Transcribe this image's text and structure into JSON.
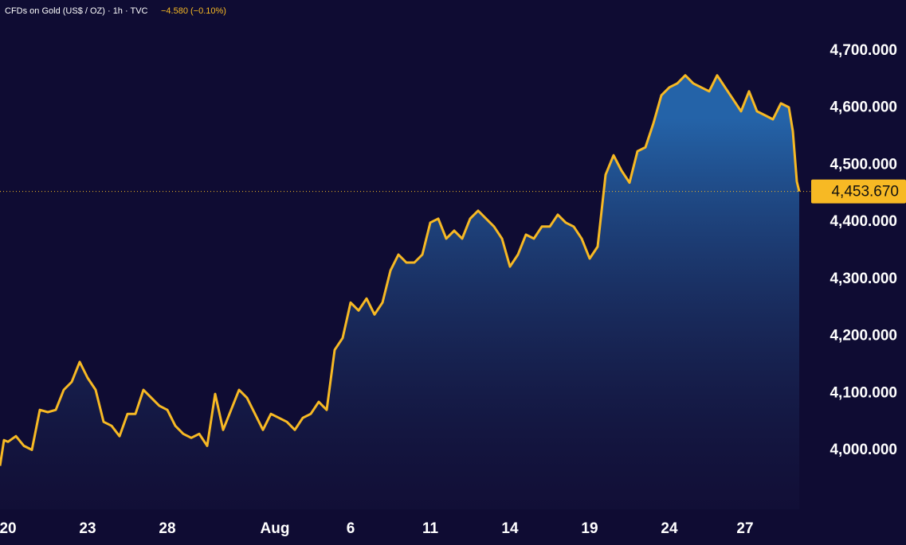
{
  "chart_data": {
    "type": "area",
    "title": "CFDs on Gold (US$ / OZ) · 1h · TVC",
    "change_label": "−4.580 (−0.10%)",
    "color": "#f7b924",
    "x": [
      0,
      1,
      2,
      4,
      6,
      8,
      10,
      12,
      14,
      16,
      18,
      20,
      22,
      24,
      26,
      28,
      30,
      32,
      34,
      36,
      38,
      40,
      42,
      44,
      46,
      48,
      50,
      52,
      54,
      56,
      58,
      60,
      62,
      64,
      66,
      68,
      70,
      72,
      74,
      76,
      78,
      80,
      82,
      84,
      86,
      88,
      90,
      92,
      94,
      96,
      98,
      100,
      102,
      104,
      106,
      108,
      110,
      112,
      114,
      116,
      118,
      120,
      122,
      124,
      126,
      128,
      130,
      132,
      134,
      136,
      138,
      140,
      142,
      144,
      146,
      148,
      150,
      152,
      154,
      156,
      158,
      160,
      162,
      164,
      166,
      168,
      170,
      172,
      174,
      176,
      178,
      180,
      182,
      184,
      186,
      188,
      190,
      192,
      194,
      196,
      198,
      199,
      200,
      200.6
    ],
    "values": [
      3973,
      4018,
      4015,
      4025,
      4008,
      4001,
      4071,
      4067,
      4071,
      4106,
      4120,
      4155,
      4127,
      4106,
      4050,
      4043,
      4025,
      4064,
      4064,
      4106,
      4092,
      4078,
      4071,
      4043,
      4029,
      4022,
      4029,
      4008,
      4099,
      4036,
      4071,
      4106,
      4092,
      4064,
      4036,
      4064,
      4057,
      4050,
      4036,
      4057,
      4064,
      4085,
      4071,
      4176,
      4197,
      4259,
      4245,
      4266,
      4238,
      4259,
      4315,
      4343,
      4329,
      4329,
      4343,
      4399,
      4406,
      4371,
      4385,
      4371,
      4406,
      4420,
      4406,
      4392,
      4371,
      4322,
      4343,
      4378,
      4371,
      4392,
      4392,
      4413,
      4399,
      4392,
      4371,
      4336,
      4357,
      4483,
      4517,
      4490,
      4469,
      4524,
      4531,
      4573,
      4622,
      4636,
      4643,
      4657,
      4643,
      4636,
      4629,
      4657,
      4636,
      4615,
      4594,
      4629,
      4594,
      4587,
      4580,
      4608,
      4601,
      4559,
      4471,
      4453.67
    ],
    "last_price": {
      "value": 4453.67,
      "label": "4,453.670"
    },
    "xlim": [
      0,
      202
    ],
    "ylim": [
      3897,
      4789
    ],
    "xticks": [
      {
        "value": 2,
        "label": "20"
      },
      {
        "value": 22,
        "label": "23"
      },
      {
        "value": 42,
        "label": "28"
      },
      {
        "value": 69,
        "label": "Aug"
      },
      {
        "value": 88,
        "label": "6"
      },
      {
        "value": 108,
        "label": "11"
      },
      {
        "value": 128,
        "label": "14"
      },
      {
        "value": 148,
        "label": "19"
      },
      {
        "value": 168,
        "label": "24"
      },
      {
        "value": 187,
        "label": "27"
      }
    ],
    "yticks": [
      {
        "value": 4000,
        "label": "4,000.000"
      },
      {
        "value": 4100,
        "label": "4,100.000"
      },
      {
        "value": 4200,
        "label": "4,200.000"
      },
      {
        "value": 4300,
        "label": "4,300.000"
      },
      {
        "value": 4400,
        "label": "4,400.000"
      },
      {
        "value": 4500,
        "label": "4,500.000"
      },
      {
        "value": 4600,
        "label": "4,600.000"
      },
      {
        "value": 4700,
        "label": "4,700.000"
      }
    ]
  }
}
